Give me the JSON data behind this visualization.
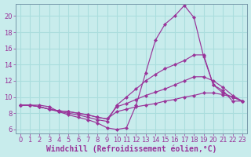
{
  "title": "",
  "xlabel": "Windchill (Refroidissement éolien,°C)",
  "ylabel": "",
  "background_color": "#c8ecec",
  "grid_color": "#aadddd",
  "line_color": "#993399",
  "spine_color": "#7799aa",
  "xlim": [
    -0.5,
    23.5
  ],
  "ylim": [
    5.5,
    21.5
  ],
  "xticks": [
    0,
    1,
    2,
    3,
    4,
    5,
    6,
    7,
    8,
    9,
    10,
    11,
    12,
    13,
    14,
    15,
    16,
    17,
    18,
    19,
    20,
    21,
    22,
    23
  ],
  "yticks": [
    6,
    8,
    10,
    12,
    14,
    16,
    18,
    20
  ],
  "series": [
    [
      9.0,
      9.0,
      9.0,
      8.8,
      8.2,
      7.8,
      7.5,
      7.2,
      6.8,
      6.2,
      6.0,
      6.2,
      9.0,
      13.0,
      17.0,
      19.0,
      20.0,
      21.3,
      19.8,
      15.0,
      11.5,
      10.8,
      9.5,
      9.5
    ],
    [
      9.0,
      9.0,
      8.8,
      8.5,
      8.2,
      8.0,
      7.8,
      7.5,
      7.2,
      7.0,
      9.0,
      10.0,
      11.0,
      12.0,
      12.8,
      13.5,
      14.0,
      14.5,
      15.2,
      15.2,
      11.5,
      10.5,
      10.0,
      9.5
    ],
    [
      9.0,
      9.0,
      8.8,
      8.5,
      8.3,
      8.2,
      8.0,
      7.8,
      7.5,
      7.3,
      8.8,
      9.2,
      9.7,
      10.2,
      10.6,
      11.0,
      11.5,
      12.0,
      12.5,
      12.5,
      12.0,
      11.2,
      10.2,
      9.5
    ],
    [
      9.0,
      9.0,
      8.8,
      8.5,
      8.3,
      8.2,
      8.0,
      7.8,
      7.5,
      7.3,
      8.2,
      8.5,
      8.8,
      9.0,
      9.2,
      9.5,
      9.7,
      10.0,
      10.2,
      10.5,
      10.5,
      10.3,
      10.0,
      9.5
    ]
  ],
  "tick_fontsize": 6.0,
  "label_fontsize": 7.0
}
